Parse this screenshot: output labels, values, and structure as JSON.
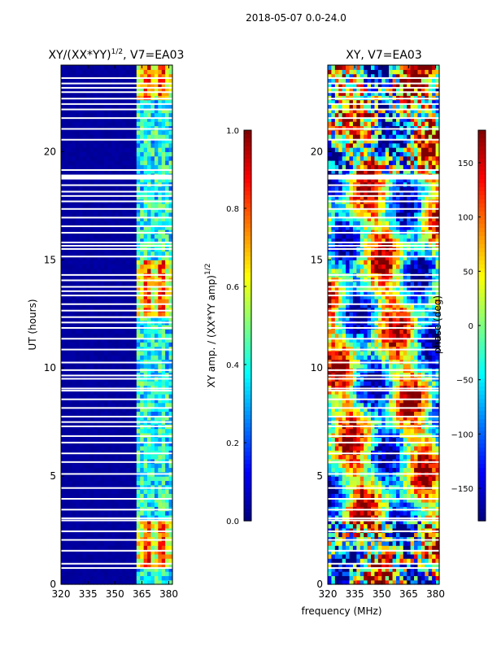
{
  "suptitle": "2018-05-07 0.0-24.0",
  "colors": {
    "missing_row": "#ffffff",
    "colormap": [
      "#00007f",
      "#0000ff",
      "#007fff",
      "#00ffff",
      "#7fff7f",
      "#ffff00",
      "#ff7f00",
      "#ff0000",
      "#7f0000"
    ]
  },
  "shared": {
    "xlabel": "frequency (MHz)",
    "ylabel": "UT (hours)",
    "x_ticks": [
      "320",
      "335",
      "350",
      "365",
      "380"
    ],
    "x_tick_values": [
      320,
      335,
      350,
      365,
      380
    ],
    "y_ticks": [
      "0",
      "5",
      "10",
      "15",
      "20"
    ],
    "y_tick_values": [
      0,
      5,
      10,
      15,
      20
    ],
    "xlim": [
      320,
      382
    ],
    "ylim": [
      0,
      24
    ],
    "missing_rows_ut": [
      0.75,
      0.95,
      1.55,
      2.05,
      2.45,
      2.95,
      3.05,
      3.45,
      3.95,
      4.45,
      5.1,
      5.65,
      6.05,
      6.55,
      6.85,
      7.3,
      7.5,
      7.75,
      8.15,
      8.55,
      8.95,
      9.05,
      9.5,
      9.65,
      9.9,
      10.25,
      10.85,
      11.35,
      11.85,
      12.1,
      12.35,
      12.65,
      12.95,
      13.35,
      13.55,
      13.75,
      14.05,
      14.3,
      15.15,
      15.5,
      15.65,
      15.8,
      16.25,
      16.55,
      16.95,
      17.35,
      17.7,
      17.95,
      18.15,
      18.45,
      18.75,
      18.8,
      18.85,
      18.9,
      19.15,
      20.55,
      21.05,
      21.55,
      21.95,
      22.2,
      22.45,
      22.75,
      22.95,
      23.15,
      23.4
    ]
  },
  "chart_data": [
    {
      "type": "heatmap",
      "title": "XY/(XX*YY)",
      "title_exponent": "1/2",
      "title_suffix": ", V7=EA03",
      "xlabel": "frequency (MHz)",
      "ylabel": "UT (hours)",
      "xlim": [
        320,
        382
      ],
      "ylim": [
        0,
        24
      ],
      "quantity": "normalized XY amplitude",
      "colorbar": {
        "label": "XY amp. / (XX*YY amp)",
        "label_exponent": "1/2",
        "range": [
          0.0,
          1.0
        ],
        "ticks": [
          "0.0",
          "0.2",
          "0.4",
          "0.6",
          "0.8",
          "1.0"
        ],
        "tick_values": [
          0.0,
          0.2,
          0.4,
          0.6,
          0.8,
          1.0
        ]
      },
      "description_of_values": {
        "below_360MHz": 0.02,
        "365_to_381MHz_typical": 0.45,
        "high_amplitude_ut_ranges": [
          [
            0.8,
            3.0
          ],
          [
            12.5,
            15.0
          ],
          [
            22.5,
            24.0
          ]
        ],
        "high_amplitude_peak": 0.95
      }
    },
    {
      "type": "heatmap",
      "title": "XY, V7=EA03",
      "xlabel": "frequency (MHz)",
      "ylabel": "",
      "xlim": [
        320,
        382
      ],
      "ylim": [
        0,
        24
      ],
      "quantity": "XY phase (deg)",
      "colorbar": {
        "label": "phase (deg)",
        "range": [
          -180,
          180
        ],
        "ticks": [
          "−150",
          "−100",
          "−50",
          "0",
          "50",
          "100",
          "150"
        ],
        "tick_values": [
          -150,
          -100,
          -50,
          0,
          50,
          100,
          150
        ]
      }
    }
  ]
}
